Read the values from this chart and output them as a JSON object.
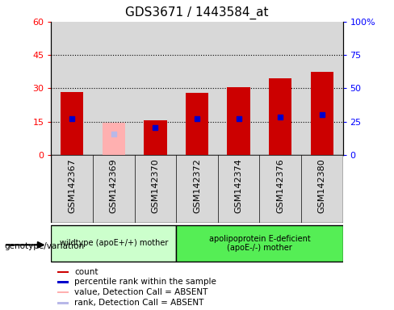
{
  "title": "GDS3671 / 1443584_at",
  "samples": [
    "GSM142367",
    "GSM142369",
    "GSM142370",
    "GSM142372",
    "GSM142374",
    "GSM142376",
    "GSM142380"
  ],
  "count_values": [
    28.5,
    null,
    15.5,
    28.0,
    30.5,
    34.5,
    37.5
  ],
  "rank_values": [
    27.0,
    null,
    20.5,
    27.0,
    27.5,
    28.5,
    30.0
  ],
  "absent_value": [
    null,
    14.5,
    null,
    null,
    null,
    null,
    null
  ],
  "absent_rank": [
    null,
    16.0,
    null,
    null,
    null,
    null,
    null
  ],
  "left_ylim": [
    0,
    60
  ],
  "right_ylim": [
    0,
    100
  ],
  "left_yticks": [
    0,
    15,
    30,
    45,
    60
  ],
  "right_yticks": [
    0,
    25,
    50,
    75,
    100
  ],
  "right_yticklabels": [
    "0",
    "25",
    "50",
    "75",
    "100%"
  ],
  "left_yticklabels": [
    "0",
    "15",
    "30",
    "45",
    "60"
  ],
  "bar_width": 0.55,
  "count_color": "#cc0000",
  "rank_color": "#0000cc",
  "absent_count_color": "#ffb0b0",
  "absent_rank_color": "#b8b8e8",
  "group1_label": "wildtype (apoE+/+) mother",
  "group2_label": "apolipoprotein E-deficient\n(apoE-/-) mother",
  "group1_indices": [
    0,
    1,
    2
  ],
  "group2_indices": [
    3,
    4,
    5,
    6
  ],
  "group1_color": "#ccffcc",
  "group2_color": "#55ee55",
  "legend_items": [
    {
      "label": "count",
      "color": "#cc0000"
    },
    {
      "label": "percentile rank within the sample",
      "color": "#0000cc"
    },
    {
      "label": "value, Detection Call = ABSENT",
      "color": "#ffb0b0"
    },
    {
      "label": "rank, Detection Call = ABSENT",
      "color": "#b8b8e8"
    }
  ],
  "title_fontsize": 11,
  "tick_fontsize": 8,
  "label_fontsize": 8,
  "col_bg_color": "#d8d8d8",
  "plot_bg": "#ffffff",
  "dotted_yticks": [
    15,
    30,
    45
  ]
}
